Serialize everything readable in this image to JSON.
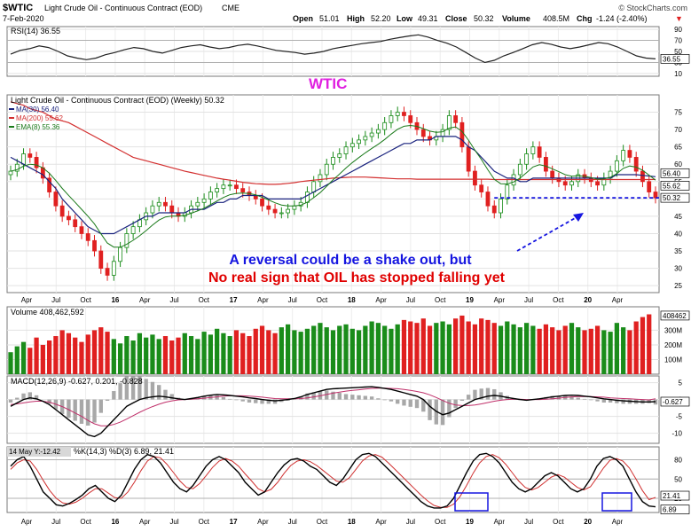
{
  "header": {
    "symbol": "$WTIC",
    "name": "Light Crude Oil - Continuous Contract (EOD)",
    "exchange": "CME",
    "date": "7-Feb-2020",
    "brand": "© StockCharts.com",
    "open_label": "Open",
    "open": "51.01",
    "high_label": "High",
    "high": "52.20",
    "low_label": "Low",
    "low": "49.31",
    "close_label": "Close",
    "close": "50.32",
    "volume_label": "Volume",
    "volume": "408.5M",
    "chg_label": "Chg",
    "chg": "-1.24 (-2.40%)",
    "chg_arrow": "▼"
  },
  "colors": {
    "up": "#1a8c1a",
    "down": "#e02020",
    "ma30": "#1a237e",
    "ma200": "#d32f2f",
    "ema8": "#1a7a1a",
    "rsi": "#222222",
    "annotation_blue": "#1515e0",
    "annotation_red": "#e00000",
    "annotation_magenta": "#e020e0"
  },
  "annotations": {
    "title": "WTIC",
    "line1": "A reversal could be a shake out, but",
    "line2": "No real sign that OIL has stopped falling yet"
  },
  "chart_data": [
    {
      "type": "line",
      "panel": "rsi",
      "title": "RSI(14) 36.55",
      "y_ticks": [
        10,
        30,
        50,
        70,
        90
      ],
      "ylim": [
        5,
        95
      ],
      "guides": [
        30,
        70
      ],
      "last_value": "36.55",
      "values": [
        45,
        52,
        55,
        60,
        57,
        50,
        42,
        38,
        35,
        38,
        44,
        48,
        53,
        57,
        55,
        50,
        47,
        52,
        57,
        60,
        62,
        58,
        55,
        57,
        61,
        63,
        60,
        56,
        52,
        50,
        48,
        45,
        47,
        50,
        55,
        58,
        61,
        64,
        66,
        68,
        72,
        75,
        78,
        80,
        76,
        70,
        65,
        58,
        48,
        38,
        30,
        34,
        42,
        48,
        55,
        62,
        66,
        63,
        58,
        55,
        58,
        62,
        66,
        64,
        58,
        50,
        42,
        38,
        36.55
      ]
    },
    {
      "type": "candlestick",
      "panel": "price",
      "title": "Light Crude Oil - Continuous Contract (EOD) (Weekly) 50.32",
      "legend": [
        "MA(30) 56.40",
        "MA(200) 55.62",
        "EMA(8) 55.36"
      ],
      "y_ticks": [
        25,
        30,
        35,
        40,
        45,
        50,
        55,
        60,
        65,
        70,
        75
      ],
      "ylim": [
        23,
        80
      ],
      "last_labels": [
        "56.40",
        "55.62",
        "50.32"
      ],
      "support_level": 50.32,
      "closes": [
        58,
        60,
        63,
        62,
        59,
        56,
        52,
        48,
        45,
        44,
        42,
        40,
        38,
        35,
        30,
        28,
        32,
        36,
        40,
        42,
        44,
        46,
        48,
        49,
        48,
        46,
        45,
        46,
        48,
        49,
        50,
        52,
        53,
        54,
        54,
        53,
        52,
        51,
        50,
        48,
        47,
        46,
        46,
        47,
        48,
        49,
        52,
        55,
        57,
        60,
        62,
        63,
        65,
        66,
        67,
        68,
        69,
        70,
        72,
        74,
        75,
        74,
        72,
        70,
        68,
        67,
        68,
        70,
        74,
        72,
        65,
        58,
        54,
        52,
        48,
        46,
        50,
        54,
        57,
        60,
        63,
        65,
        62,
        58,
        56,
        55,
        54,
        55,
        57,
        56,
        55,
        54,
        56,
        58,
        61,
        64,
        62,
        58,
        55,
        52,
        50.32
      ],
      "ma30": [
        62,
        61,
        60,
        59,
        58,
        57,
        55,
        53,
        50,
        48,
        46,
        44,
        42,
        41,
        40,
        40,
        40,
        41,
        42,
        43,
        44,
        45,
        45,
        46,
        46,
        46,
        46,
        46,
        47,
        47,
        47,
        48,
        49,
        49,
        50,
        50,
        51,
        51,
        51,
        51,
        50,
        50,
        50,
        50,
        50,
        50,
        51,
        52,
        53,
        54,
        55,
        56,
        57,
        58,
        59,
        60,
        61,
        62,
        63,
        64,
        65,
        66,
        66,
        67,
        67,
        67,
        68,
        68,
        68,
        68,
        67,
        65,
        64,
        62,
        60,
        58,
        57,
        56,
        56,
        55,
        55,
        56,
        56,
        56,
        56,
        56,
        56,
        56,
        56,
        56,
        56,
        56,
        56,
        56,
        57,
        57,
        57,
        57,
        56.8,
        56.6,
        56.4
      ],
      "ma200": [
        78,
        77.5,
        77,
        76,
        75.5,
        75,
        74,
        73,
        72.5,
        72,
        71,
        70,
        69,
        68,
        67,
        66,
        65,
        64,
        63,
        62,
        61.5,
        61,
        60.5,
        60,
        59.5,
        59,
        58.5,
        58,
        57.6,
        57.2,
        56.8,
        56.4,
        56,
        55.7,
        55.4,
        55.1,
        54.8,
        54.6,
        54.4,
        54.3,
        54.2,
        54.2,
        54.3,
        54.5,
        54.7,
        55,
        55.2,
        55.4,
        55.6,
        55.8,
        56,
        56.1,
        56.2,
        56.3,
        56.3,
        56.3,
        56.2,
        56.1,
        56,
        55.9,
        55.8,
        55.8,
        55.8,
        55.7,
        55.7,
        55.7,
        55.7,
        55.7,
        55.7,
        55.7,
        55.7,
        55.7,
        55.7,
        55.7,
        55.7,
        55.6,
        55.6,
        55.6,
        55.6,
        55.6,
        55.6,
        55.6,
        55.6,
        55.6,
        55.6,
        55.6,
        55.6,
        55.6,
        55.6,
        55.6,
        55.6,
        55.6,
        55.6,
        55.6,
        55.6,
        55.6,
        55.6,
        55.6,
        55.6,
        55.6,
        55.62
      ]
    },
    {
      "type": "bar",
      "panel": "volume",
      "title": "Volume 408,462,592",
      "unit": "M",
      "y_ticks": [
        100,
        200,
        300
      ],
      "y_tick_labels": [
        "100M",
        "200M",
        "300M"
      ],
      "ylim": [
        0,
        460
      ],
      "last_label": "408462",
      "values": [
        150,
        190,
        220,
        180,
        250,
        200,
        230,
        260,
        300,
        280,
        250,
        220,
        270,
        300,
        320,
        290,
        240,
        210,
        260,
        230,
        280,
        250,
        270,
        240,
        260,
        230,
        250,
        280,
        260,
        240,
        290,
        270,
        310,
        280,
        260,
        300,
        280,
        260,
        310,
        330,
        300,
        280,
        320,
        340,
        300,
        290,
        310,
        330,
        350,
        320,
        300,
        330,
        340,
        310,
        300,
        330,
        360,
        350,
        330,
        310,
        340,
        370,
        360,
        350,
        380,
        330,
        350,
        360,
        340,
        380,
        400,
        360,
        340,
        380,
        370,
        350,
        330,
        360,
        340,
        320,
        350,
        330,
        310,
        340,
        320,
        300,
        330,
        350,
        320,
        300,
        310,
        330,
        300,
        290,
        350,
        320,
        300,
        360,
        390,
        408.46
      ]
    },
    {
      "type": "line",
      "panel": "macd",
      "title": "MACD(12,26,9) -0.627, 0.201, -0.828",
      "y_ticks": [
        -10,
        -5,
        0,
        5
      ],
      "ylim": [
        -13,
        7
      ],
      "last_label": "-0.627",
      "macd": [
        -2,
        -1,
        0,
        0.5,
        0.2,
        -0.5,
        -1.5,
        -3,
        -4.5,
        -6,
        -7.5,
        -9,
        -10.5,
        -11,
        -10,
        -8,
        -6,
        -4,
        -2,
        -1,
        0,
        0.5,
        0.8,
        1,
        0.8,
        0.5,
        0.2,
        0,
        0.3,
        0.6,
        1,
        1.3,
        1.5,
        1.4,
        1.2,
        1,
        0.8,
        0.5,
        0.3,
        0,
        -0.2,
        -0.4,
        -0.2,
        0,
        0.3,
        0.8,
        1.5,
        2,
        2.5,
        3,
        3.2,
        3.3,
        3.4,
        3.5,
        3.6,
        3.7,
        3.8,
        3.6,
        3.3,
        3,
        2.5,
        2,
        1.5,
        1,
        0,
        -2,
        -3.5,
        -4.5,
        -4,
        -3,
        -2,
        -1,
        0,
        0.5,
        1,
        1.2,
        1,
        0.6,
        0.3,
        0,
        -0.2,
        0,
        0.2,
        0.5,
        0.8,
        1,
        1.2,
        1.3,
        1.2,
        1,
        0.8,
        0.5,
        0.2,
        0,
        -0.2,
        -0.4,
        -0.5,
        -0.6,
        -0.7,
        -0.7,
        -0.627
      ],
      "signal": [
        -1.5,
        -1.3,
        -1,
        -0.7,
        -0.5,
        -0.5,
        -0.8,
        -1.4,
        -2.1,
        -3,
        -4,
        -5,
        -6.2,
        -7.2,
        -7.8,
        -7.8,
        -7.4,
        -6.7,
        -5.8,
        -4.8,
        -3.8,
        -2.9,
        -2.1,
        -1.4,
        -0.8,
        -0.4,
        -0.1,
        0,
        0.1,
        0.2,
        0.4,
        0.6,
        0.8,
        1,
        1.1,
        1.1,
        1.1,
        1,
        0.9,
        0.7,
        0.5,
        0.3,
        0.2,
        0.2,
        0.2,
        0.3,
        0.5,
        0.8,
        1.1,
        1.5,
        1.9,
        2.2,
        2.5,
        2.7,
        2.9,
        3.1,
        3.3,
        3.4,
        3.4,
        3.3,
        3.2,
        3,
        2.7,
        2.4,
        2,
        1.4,
        0.6,
        -0.3,
        -1.1,
        -1.6,
        -1.8,
        -1.8,
        -1.6,
        -1.3,
        -0.9,
        -0.5,
        -0.2,
        0,
        0.1,
        0.1,
        0,
        0,
        0,
        0.1,
        0.2,
        0.4,
        0.6,
        0.8,
        0.9,
        0.9,
        0.9,
        0.8,
        0.7,
        0.5,
        0.4,
        0.3,
        0.2,
        0.1,
        0,
        -0.1,
        0.201
      ]
    },
    {
      "type": "line",
      "panel": "stochastic",
      "title": "%K(14,3) %D(3) 6.89, 21.41",
      "cursor_readout": "14 May Y:-12.42",
      "y_ticks": [
        20,
        50,
        80
      ],
      "ylim": [
        -2,
        100
      ],
      "guides": [
        20,
        50,
        80
      ],
      "last_labels": [
        "21.41",
        "6.89"
      ],
      "k": [
        70,
        80,
        85,
        70,
        50,
        30,
        20,
        10,
        8,
        12,
        18,
        25,
        35,
        40,
        30,
        20,
        15,
        25,
        45,
        65,
        80,
        88,
        85,
        75,
        60,
        45,
        35,
        30,
        40,
        55,
        70,
        80,
        85,
        80,
        70,
        60,
        45,
        35,
        25,
        30,
        45,
        60,
        72,
        80,
        82,
        78,
        70,
        65,
        55,
        45,
        40,
        50,
        65,
        80,
        88,
        90,
        85,
        75,
        65,
        55,
        45,
        35,
        25,
        15,
        8,
        5,
        5,
        8,
        20,
        40,
        60,
        78,
        88,
        90,
        85,
        75,
        60,
        45,
        35,
        30,
        35,
        45,
        55,
        60,
        55,
        45,
        35,
        30,
        35,
        50,
        70,
        82,
        85,
        80,
        70,
        50,
        30,
        15,
        8,
        6.89
      ],
      "d": [
        65,
        75,
        80,
        78,
        65,
        48,
        32,
        20,
        13,
        11,
        14,
        20,
        28,
        35,
        35,
        28,
        21,
        20,
        30,
        45,
        63,
        78,
        85,
        83,
        73,
        60,
        47,
        37,
        35,
        43,
        55,
        68,
        78,
        82,
        78,
        70,
        58,
        47,
        35,
        30,
        34,
        45,
        59,
        71,
        78,
        80,
        77,
        71,
        63,
        55,
        47,
        45,
        52,
        65,
        78,
        86,
        88,
        84,
        75,
        65,
        55,
        45,
        35,
        25,
        16,
        9,
        6,
        6,
        11,
        23,
        40,
        59,
        75,
        85,
        88,
        83,
        73,
        60,
        47,
        37,
        33,
        37,
        45,
        53,
        57,
        53,
        45,
        37,
        33,
        38,
        52,
        67,
        79,
        82,
        78,
        67,
        50,
        32,
        18,
        21.41
      ]
    }
  ],
  "x_axis": {
    "labels": [
      "Apr",
      "Jul",
      "Oct",
      "16",
      "Apr",
      "Jul",
      "Oct",
      "17",
      "Apr",
      "Jul",
      "Oct",
      "18",
      "Apr",
      "Jul",
      "Oct",
      "19",
      "Apr",
      "Jul",
      "Oct",
      "20",
      "Apr"
    ],
    "year_labels": [
      "16",
      "17",
      "18",
      "19",
      "20"
    ]
  }
}
